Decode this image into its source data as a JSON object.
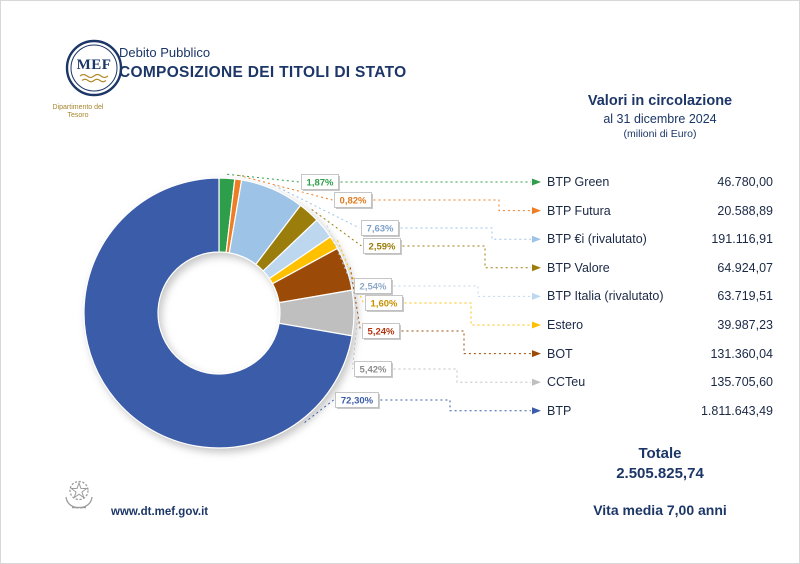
{
  "header": {
    "logo": {
      "acronym": "MEF",
      "caption": "Dipartimento del Tesoro"
    },
    "kicker": "Debito Pubblico",
    "title": "COMPOSIZIONE DEI TITOLI DI STATO"
  },
  "subheader": {
    "line1": "Valori in circolazione",
    "line2": "al 31 dicembre 2024",
    "line3": "(milioni di Euro)"
  },
  "chart_data": {
    "type": "pie",
    "donut": true,
    "title": "Composizione dei titoli di Stato",
    "subtitle": "Valori in circolazione al 31 dicembre 2024",
    "unit": "milioni di Euro",
    "legend_position": "right",
    "items": [
      {
        "label": "BTP Green",
        "value": 46780.0,
        "value_label": "46.780,00",
        "pct": 1.87,
        "pct_label": "1,87%",
        "color": "#2f9e4a",
        "label_color": "#2f9e4a"
      },
      {
        "label": "BTP Futura",
        "value": 20588.89,
        "value_label": "20.588,89",
        "pct": 0.82,
        "pct_label": "0,82%",
        "color": "#ee7d23",
        "label_color": "#e07b1f"
      },
      {
        "label": "BTP €i (rivalutato)",
        "value": 191116.91,
        "value_label": "191.116,91",
        "pct": 7.63,
        "pct_label": "7,63%",
        "color": "#9dc3e6",
        "label_color": "#7da0c8"
      },
      {
        "label": "BTP Valore",
        "value": 64924.07,
        "value_label": "64.924,07",
        "pct": 2.59,
        "pct_label": "2,59%",
        "color": "#9a7d0a",
        "label_color": "#9a7d0a"
      },
      {
        "label": "BTP Italia (rivalutato)",
        "value": 63719.51,
        "value_label": "63.719,51",
        "pct": 2.54,
        "pct_label": "2,54%",
        "color": "#bdd7ee",
        "label_color": "#8fa9c9"
      },
      {
        "label": "Estero",
        "value": 39987.23,
        "value_label": "39.987,23",
        "pct": 1.6,
        "pct_label": "1,60%",
        "color": "#ffc000",
        "label_color": "#c79100"
      },
      {
        "label": "BOT",
        "value": 131360.04,
        "value_label": "131.360,04",
        "pct": 5.24,
        "pct_label": "5,24%",
        "color": "#9c4a08",
        "label_color": "#b23512"
      },
      {
        "label": "CCTeu",
        "value": 135705.6,
        "value_label": "135.705,60",
        "pct": 5.42,
        "pct_label": "5,42%",
        "color": "#bfbfbf",
        "label_color": "#8c8c8c"
      },
      {
        "label": "BTP",
        "value": 1811643.49,
        "value_label": "1.811.643,49",
        "pct": 72.3,
        "pct_label": "72,30%",
        "color": "#3b5ca9",
        "label_color": "#3b5ca9"
      }
    ],
    "total": {
      "label": "Totale",
      "value": 2505825.74,
      "value_label": "2.505.825,74"
    }
  },
  "footer": {
    "vita_media": "Vita media 7,00 anni",
    "website": "www.dt.mef.gov.it"
  },
  "icons": {
    "legend_arrow": "triangle-right",
    "mef_logo": "circular-seal",
    "italy_emblem": "star-and-cogwheel"
  },
  "colors": {
    "navy": "#1c3667",
    "gold": "#a8862e"
  }
}
